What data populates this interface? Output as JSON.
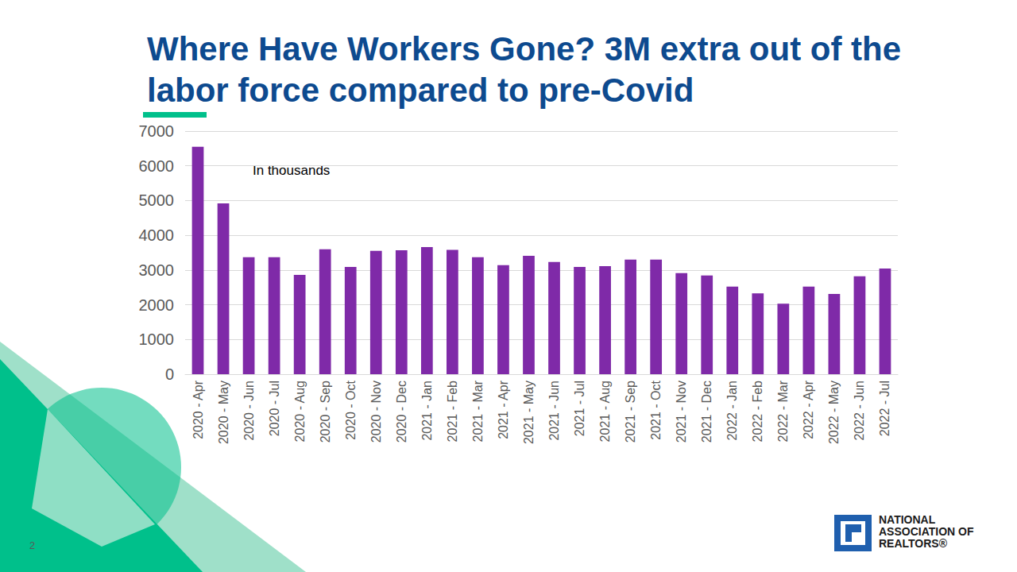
{
  "chart_data": {
    "type": "bar",
    "title": "Where Have Workers Gone? 3M extra out of the labor force compared to pre-Covid",
    "annotations": [
      "In thousands"
    ],
    "page_number": "2",
    "logo": [
      "NATIONAL",
      "ASSOCIATION OF",
      "REALTORS®"
    ],
    "categories": [
      "2020 - Apr",
      "2020 - May",
      "2020 - Jun",
      "2020 - Jul",
      "2020 - Aug",
      "2020 - Sep",
      "2020 - Oct",
      "2020 - Nov",
      "2020 - Dec",
      "2021 - Jan",
      "2021 - Feb",
      "2021 - Mar",
      "2021 - Apr",
      "2021 - May",
      "2021 - Jun",
      "2021 - Jul",
      "2021 - Aug",
      "2021 - Sep",
      "2021 - Oct",
      "2021 - Nov",
      "2021 - Dec",
      "2022 - Jan",
      "2022 - Feb",
      "2022 - Mar",
      "2022 - Apr",
      "2022 - May",
      "2022 - Jun",
      "2022 - Jul"
    ],
    "values": [
      6550,
      4920,
      3370,
      3370,
      2860,
      3600,
      3090,
      3550,
      3570,
      3660,
      3580,
      3370,
      3140,
      3410,
      3230,
      3090,
      3110,
      3300,
      3300,
      2910,
      2840,
      2520,
      2330,
      2030,
      2520,
      2310,
      2820,
      3040
    ],
    "color": "#7f2aa8",
    "ylim": [
      0,
      7000
    ],
    "yticks": [
      0,
      1000,
      2000,
      3000,
      4000,
      5000,
      6000,
      7000
    ],
    "grid": true
  }
}
